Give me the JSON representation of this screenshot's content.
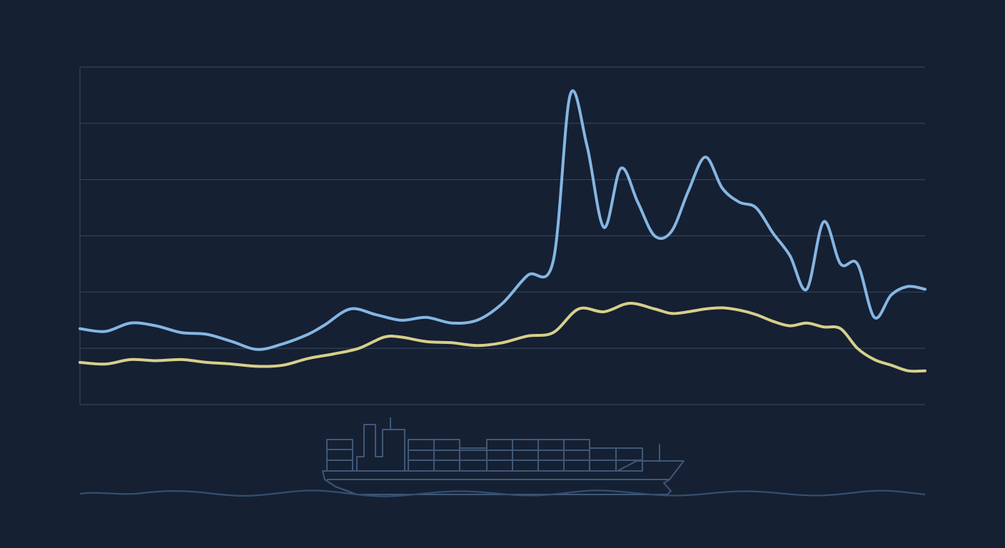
{
  "chart_data": {
    "type": "line",
    "title": "",
    "xlabel": "",
    "ylabel": "",
    "ylim": [
      0,
      6
    ],
    "xlim": [
      0,
      100
    ],
    "grid": true,
    "legend": "none",
    "series": [
      {
        "color": "#86b6e2",
        "x": [
          0,
          3,
          6,
          9,
          12,
          15,
          18,
          21,
          24,
          27,
          29,
          32,
          35,
          38,
          41,
          44,
          47,
          50,
          53,
          56,
          58,
          60,
          62,
          64,
          66,
          68,
          70,
          72,
          74,
          76,
          78,
          80,
          82,
          84,
          86,
          88,
          90,
          92,
          94,
          96,
          98,
          100
        ],
        "y": [
          1.35,
          1.3,
          1.45,
          1.4,
          1.28,
          1.25,
          1.12,
          0.98,
          1.08,
          1.25,
          1.42,
          1.7,
          1.6,
          1.5,
          1.55,
          1.45,
          1.5,
          1.8,
          2.3,
          2.55,
          5.5,
          4.6,
          3.15,
          4.2,
          3.6,
          3.0,
          3.08,
          3.8,
          4.4,
          3.85,
          3.6,
          3.5,
          3.05,
          2.65,
          2.05,
          3.25,
          2.5,
          2.5,
          1.55,
          1.95,
          2.1,
          2.05
        ]
      },
      {
        "color": "#d8cf8a",
        "x": [
          0,
          3,
          6,
          9,
          12,
          15,
          18,
          21,
          24,
          27,
          30,
          33,
          36,
          38,
          41,
          44,
          47,
          50,
          53,
          56,
          59,
          62,
          65,
          68,
          70,
          72,
          74,
          76,
          78,
          80,
          82,
          84,
          86,
          88,
          90,
          92,
          94,
          96,
          98,
          100
        ],
        "y": [
          0.75,
          0.72,
          0.8,
          0.78,
          0.8,
          0.75,
          0.72,
          0.68,
          0.7,
          0.82,
          0.9,
          1.0,
          1.2,
          1.2,
          1.12,
          1.1,
          1.05,
          1.1,
          1.22,
          1.28,
          1.7,
          1.65,
          1.8,
          1.7,
          1.62,
          1.65,
          1.7,
          1.72,
          1.68,
          1.6,
          1.48,
          1.4,
          1.45,
          1.38,
          1.35,
          1.0,
          0.8,
          0.7,
          0.6,
          0.6
        ]
      }
    ]
  },
  "colors": {
    "background": "#152033",
    "grid": "#34445a",
    "illustration": "#3f5877"
  },
  "illustration": {
    "icon": "container-ship-icon"
  }
}
